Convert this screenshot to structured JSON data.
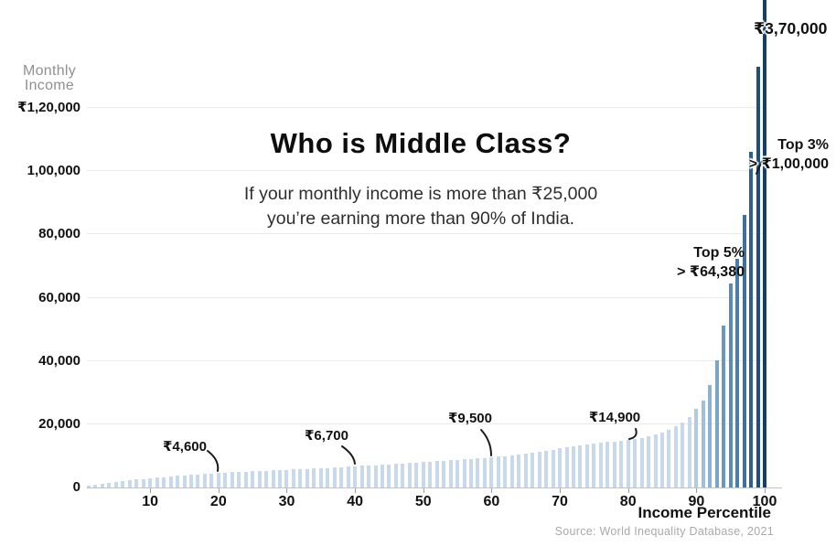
{
  "y_axis_title": {
    "line1": "Monthly",
    "line2": "Income"
  },
  "title": "Who is Middle Class?",
  "subtitle": {
    "line1": "If your monthly income is more than ₹25,000",
    "line2": "you’re earning more than 90% of India."
  },
  "footer": {
    "x_axis_label": "Income Percentile",
    "source": "Source: World Inequality Database, 2021"
  },
  "chart_data": {
    "type": "bar",
    "title": "Who is Middle Class?",
    "xlabel": "Income Percentile",
    "ylabel": "Monthly Income",
    "x_range": [
      1,
      100
    ],
    "grid": "horizontal",
    "ylim_visible": [
      0,
      133000
    ],
    "values": [
      500,
      800,
      1100,
      1400,
      1700,
      2000,
      2250,
      2500,
      2700,
      2850,
      3050,
      3250,
      3450,
      3650,
      3850,
      4000,
      4150,
      4300,
      4450,
      4600,
      4700,
      4800,
      4900,
      5000,
      5100,
      5200,
      5300,
      5400,
      5500,
      5600,
      5700,
      5800,
      5900,
      6000,
      6100,
      6220,
      6340,
      6460,
      6580,
      6700,
      6820,
      6940,
      7060,
      7180,
      7300,
      7430,
      7560,
      7700,
      7850,
      8000,
      8150,
      8300,
      8450,
      8600,
      8750,
      8900,
      9050,
      9200,
      9350,
      9500,
      9700,
      9900,
      10150,
      10400,
      10650,
      10950,
      11250,
      11600,
      11950,
      12300,
      12650,
      13000,
      13350,
      13700,
      14000,
      14250,
      14450,
      14600,
      14750,
      14900,
      15200,
      15600,
      16100,
      16700,
      17400,
      18200,
      19300,
      20600,
      22300,
      25000,
      27500,
      32500,
      40300,
      51300,
      64380,
      72300,
      86300,
      106000,
      133000,
      370000
    ],
    "y_ticks": [
      {
        "label": "₹1,20,000",
        "value": 120000
      },
      {
        "label": "1,00,000",
        "value": 100000
      },
      {
        "label": "80,000",
        "value": 80000
      },
      {
        "label": "60,000",
        "value": 60000
      },
      {
        "label": "40,000",
        "value": 40000
      },
      {
        "label": "20,000",
        "value": 20000
      },
      {
        "label": "0",
        "value": 0
      }
    ],
    "x_ticks": [
      10,
      20,
      30,
      40,
      50,
      60,
      70,
      80,
      90,
      100
    ],
    "colors": {
      "bar_light": "#c7d9ea",
      "bar_ramp_start_percentile": 90,
      "bar_ramp": [
        "#b3cbe1",
        "#a0bfd9",
        "#8db2d0",
        "#7aa5c7",
        "#6997be",
        "#5a8ab5",
        "#4b7dab",
        "#3d6f9f",
        "#2d5f8f",
        "#1f4f7d",
        "#163e66"
      ]
    },
    "annotations": [
      {
        "text": "₹4,600",
        "percentile": 20
      },
      {
        "text": "₹6,700",
        "percentile": 40
      },
      {
        "text": "₹9,500",
        "percentile": 60
      },
      {
        "text": "₹14,900",
        "percentile": 80
      },
      {
        "line1": "Top 5%",
        "line2": "> ₹64,380",
        "percentile": 95
      },
      {
        "line1": "Top 3%",
        "line2": "> ₹1,00,000",
        "percentile": 98
      },
      {
        "text": "₹3,70,000",
        "percentile": 100
      }
    ]
  }
}
